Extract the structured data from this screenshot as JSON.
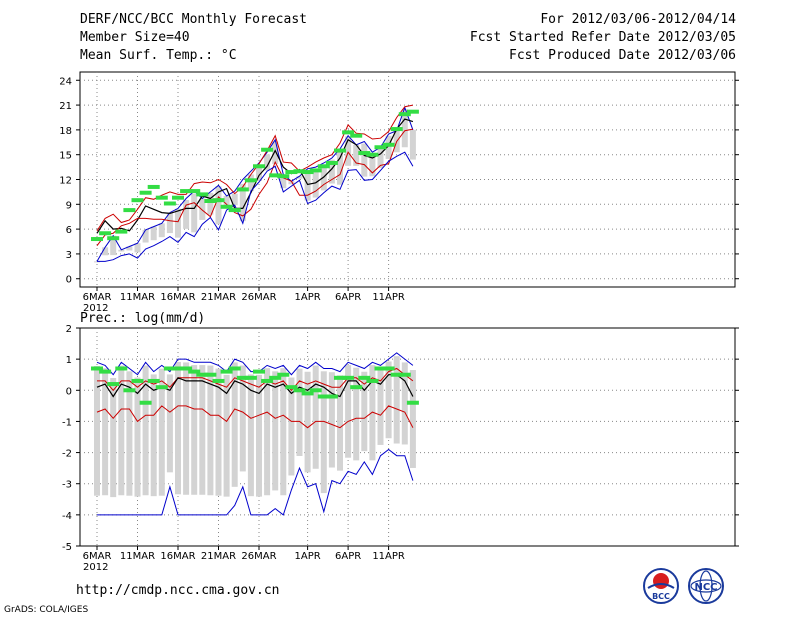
{
  "header": {
    "title": "DERF/NCC/BCC Monthly Forecast",
    "member_size": "Member Size=40",
    "variable": "Mean Surf. Temp.: °C",
    "period": "For 2012/03/06-2012/04/14",
    "start_date": "Fcst Started Refer Date 2012/03/05",
    "produced_date": "Fcst Produced Date 2012/03/06"
  },
  "footer": {
    "url": "http://cmdp.ncc.cma.gov.cn",
    "grads": "GrADS: COLA/IGES",
    "logo_bcc": "BCC",
    "logo_ncc": "NCC"
  },
  "colors": {
    "envelope": "#0000cc",
    "spread": "#cc0000",
    "mean": "#000000",
    "obs": "#33dd44",
    "bar": "#d3d3d3",
    "grid": "#888888"
  },
  "chart_data": [
    {
      "type": "line",
      "title": "Mean Surf. Temp.: °C",
      "x_ticks": [
        "6MAR",
        "11MAR",
        "16MAR",
        "21MAR",
        "26MAR",
        "1APR",
        "6APR",
        "11APR"
      ],
      "x_tick_index": [
        0,
        5,
        10,
        15,
        20,
        26,
        31,
        36
      ],
      "year_label": "2012",
      "y_ticks": [
        0,
        3,
        6,
        9,
        12,
        15,
        18,
        21,
        24
      ],
      "ylim": [
        -1,
        25
      ],
      "days": 40,
      "series": [
        {
          "name": "max",
          "role": "envelope",
          "values": [
            2.1,
            3.8,
            5.2,
            3.5,
            3.9,
            4.3,
            5.9,
            6.3,
            6.7,
            8.0,
            8.5,
            9.7,
            10.6,
            9.7,
            10.5,
            11.3,
            10.0,
            10.6,
            12.0,
            13.0,
            14.0,
            15.3,
            16.8,
            12.6,
            11.8,
            12.4,
            13.3,
            13.5,
            14.0,
            14.6,
            15.7,
            17.3,
            16.2,
            16.6,
            15.3,
            15.9,
            17.5,
            17.9,
            20.7,
            18.0
          ]
        },
        {
          "name": "spread_upper",
          "role": "spread",
          "values": [
            5.8,
            7.3,
            7.8,
            6.8,
            7.1,
            8.4,
            9.8,
            9.6,
            10.1,
            10.5,
            10.2,
            10.2,
            11.5,
            11.7,
            11.6,
            12.0,
            11.4,
            10.3,
            11.1,
            12.6,
            13.9,
            15.5,
            17.3,
            14.1,
            14.0,
            13.0,
            13.5,
            14.1,
            14.6,
            15.0,
            16.4,
            18.6,
            17.6,
            17.5,
            16.9,
            17.0,
            17.8,
            19.5,
            20.8,
            21.0
          ]
        },
        {
          "name": "ensemble_mean",
          "role": "mean",
          "values": [
            5.5,
            7.0,
            6.0,
            6.1,
            5.8,
            7.1,
            8.8,
            8.4,
            8.0,
            7.9,
            8.2,
            8.5,
            8.5,
            10.0,
            9.7,
            10.5,
            10.9,
            8.5,
            8.5,
            10.4,
            12.5,
            13.6,
            15.5,
            13.5,
            12.7,
            13.2,
            11.4,
            11.6,
            12.3,
            13.3,
            14.6,
            16.8,
            16.2,
            14.9,
            14.6,
            15.1,
            16.1,
            18.1,
            19.3,
            19.0
          ]
        },
        {
          "name": "spread_lower",
          "role": "spread",
          "values": [
            4.0,
            5.3,
            5.5,
            6.4,
            6.7,
            7.3,
            7.3,
            7.2,
            7.2,
            7.0,
            6.9,
            8.9,
            9.2,
            8.3,
            7.5,
            9.9,
            9.0,
            8.0,
            7.6,
            8.4,
            10.2,
            11.6,
            14.1,
            12.2,
            11.8,
            10.1,
            10.1,
            10.6,
            11.4,
            12.0,
            12.6,
            15.3,
            14.0,
            13.8,
            12.8,
            13.7,
            13.9,
            16.6,
            17.9,
            18.1
          ]
        },
        {
          "name": "min",
          "role": "envelope",
          "values": [
            2.1,
            2.1,
            2.3,
            2.8,
            3.0,
            2.5,
            3.6,
            4.0,
            4.5,
            5.1,
            4.4,
            5.6,
            5.1,
            6.6,
            7.4,
            5.9,
            8.3,
            8.9,
            6.7,
            10.6,
            11.7,
            13.0,
            13.6,
            10.5,
            11.2,
            11.9,
            9.1,
            9.5,
            10.4,
            11.2,
            10.8,
            13.1,
            13.2,
            11.9,
            12.0,
            13.1,
            14.2,
            14.8,
            15.3,
            13.6
          ]
        },
        {
          "name": "observed",
          "role": "obs",
          "values": [
            4.8,
            5.5,
            4.9,
            5.7,
            8.3,
            9.5,
            10.4,
            11.1,
            9.8,
            9.1,
            9.8,
            10.6,
            10.6,
            10.2,
            9.4,
            9.5,
            8.7,
            8.3,
            10.8,
            11.9,
            13.6,
            15.6,
            12.5,
            12.4,
            12.9,
            13.0,
            12.9,
            13.1,
            13.6,
            14.0,
            15.5,
            17.7,
            17.3,
            15.2,
            15.0,
            15.9,
            16.2,
            18.1,
            19.9,
            20.2
          ]
        }
      ]
    },
    {
      "type": "line",
      "title": "Prec.: log(mm/d)",
      "x_ticks": [
        "6MAR",
        "11MAR",
        "16MAR",
        "21MAR",
        "26MAR",
        "1APR",
        "6APR",
        "11APR"
      ],
      "x_tick_index": [
        0,
        5,
        10,
        15,
        20,
        26,
        31,
        36
      ],
      "year_label": "2012",
      "y_ticks": [
        2,
        1,
        0,
        -1,
        -2,
        -3,
        -4,
        -5
      ],
      "ylim": [
        -5,
        2
      ],
      "days": 40,
      "series": [
        {
          "name": "max",
          "role": "envelope",
          "values": [
            0.9,
            0.8,
            0.5,
            0.9,
            0.7,
            0.5,
            0.9,
            0.6,
            0.8,
            0.6,
            1.0,
            1.0,
            0.9,
            0.9,
            0.9,
            0.8,
            0.6,
            1.0,
            0.9,
            0.6,
            0.6,
            0.8,
            0.7,
            0.8,
            0.5,
            0.8,
            0.7,
            0.9,
            0.7,
            0.7,
            0.6,
            0.9,
            0.8,
            0.7,
            0.9,
            0.8,
            1.0,
            1.2,
            1.0,
            0.8
          ]
        },
        {
          "name": "spread_upper",
          "role": "spread",
          "values": [
            0.3,
            0.3,
            0.0,
            0.3,
            0.3,
            0.1,
            0.3,
            0.2,
            0.3,
            0.1,
            0.4,
            0.4,
            0.4,
            0.4,
            0.3,
            0.2,
            0.1,
            0.4,
            0.3,
            0.2,
            0.1,
            0.3,
            0.2,
            0.3,
            0.0,
            0.3,
            0.2,
            0.3,
            0.2,
            0.1,
            0.1,
            0.4,
            0.4,
            0.2,
            0.4,
            0.3,
            0.6,
            0.7,
            0.5,
            0.3
          ]
        },
        {
          "name": "ensemble_mean",
          "role": "mean",
          "values": [
            0.1,
            0.2,
            -0.2,
            0.2,
            0.1,
            -0.1,
            0.2,
            0.0,
            0.1,
            0.0,
            0.4,
            0.3,
            0.3,
            0.3,
            0.2,
            0.1,
            -0.1,
            0.3,
            0.2,
            0.0,
            -0.1,
            0.2,
            0.1,
            0.2,
            -0.1,
            0.1,
            0.0,
            0.2,
            0.1,
            -0.1,
            -0.2,
            0.3,
            0.3,
            0.0,
            0.3,
            0.2,
            0.5,
            0.5,
            0.3,
            -0.2
          ]
        },
        {
          "name": "spread_lower",
          "role": "spread",
          "values": [
            -0.7,
            -0.6,
            -0.9,
            -0.6,
            -0.6,
            -1.0,
            -0.8,
            -0.8,
            -0.5,
            -0.7,
            -0.5,
            -0.5,
            -0.6,
            -0.6,
            -0.8,
            -0.8,
            -1.0,
            -0.6,
            -0.7,
            -0.9,
            -0.8,
            -0.7,
            -0.9,
            -0.8,
            -1.0,
            -1.0,
            -1.2,
            -1.0,
            -1.0,
            -1.1,
            -1.2,
            -1.0,
            -0.9,
            -0.9,
            -0.7,
            -0.8,
            -0.5,
            -0.6,
            -0.7,
            -1.2
          ]
        },
        {
          "name": "min",
          "role": "envelope",
          "values": [
            -4.0,
            -4.0,
            -4.0,
            -4.0,
            -4.0,
            -4.0,
            -4.0,
            -4.0,
            -4.0,
            -3.1,
            -4.0,
            -4.0,
            -4.0,
            -4.0,
            -4.0,
            -4.0,
            -4.0,
            -3.7,
            -3.1,
            -4.0,
            -4.0,
            -4.0,
            -3.8,
            -4.0,
            -3.2,
            -2.5,
            -3.1,
            -3.0,
            -3.9,
            -2.9,
            -3.0,
            -2.6,
            -2.7,
            -2.3,
            -2.7,
            -2.1,
            -1.9,
            -2.1,
            -2.1,
            -2.9
          ]
        },
        {
          "name": "observed",
          "role": "obs",
          "values": [
            0.7,
            0.6,
            0.2,
            0.7,
            0.0,
            0.3,
            -0.4,
            0.3,
            0.1,
            0.7,
            0.7,
            0.7,
            0.6,
            0.5,
            0.5,
            0.3,
            0.6,
            0.7,
            0.4,
            0.4,
            0.6,
            0.3,
            0.4,
            0.5,
            0.1,
            0.0,
            -0.1,
            0.0,
            -0.2,
            -0.2,
            0.4,
            0.4,
            0.1,
            0.4,
            0.3,
            0.7,
            0.7,
            0.5,
            0.5,
            -0.4
          ]
        }
      ]
    }
  ]
}
